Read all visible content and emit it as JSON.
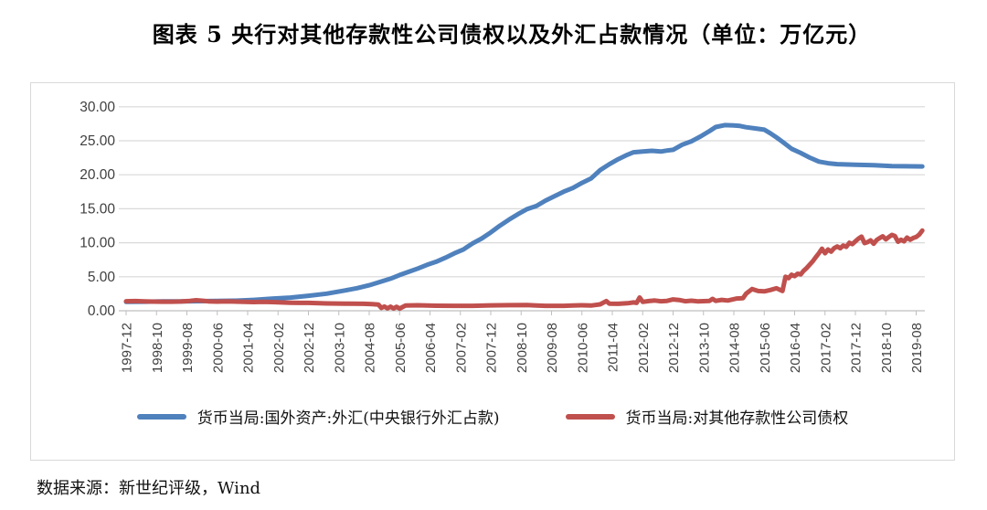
{
  "title": "图表 5  央行对其他存款性公司债权以及外汇占款情况（单位：万亿元）",
  "source": "数据来源：新世纪评级，Wind",
  "colors": {
    "series_forex": "#4F81BD",
    "series_claims": "#C0504D",
    "gridline": "#D9D9D9",
    "axis_line": "#BFBFBF",
    "tick_text": "#404040",
    "frame_border": "#D9D9D9"
  },
  "chart_data": {
    "type": "line",
    "title": "图表 5  央行对其他存款性公司债权以及外汇占款情况（单位：万亿元）",
    "unit": "万亿元",
    "xlabel": "",
    "ylabel": "",
    "ylim": [
      0,
      30
    ],
    "ytick_step": 5,
    "ytick_labels": [
      "30.00",
      "25.00",
      "20.00",
      "15.00",
      "10.00",
      "5.00",
      "0.00"
    ],
    "x_start": "1997-12",
    "x_end": "2019-10",
    "xtick_interval_months": 10,
    "xtick_labels": [
      "1997-12",
      "1998-10",
      "1999-08",
      "2000-06",
      "2001-04",
      "2002-02",
      "2002-12",
      "2003-10",
      "2004-08",
      "2005-06",
      "2006-04",
      "2007-02",
      "2007-12",
      "2008-10",
      "2009-08",
      "2010-06",
      "2011-04",
      "2012-02",
      "2012-12",
      "2013-10",
      "2014-08",
      "2015-06",
      "2016-04",
      "2017-02",
      "2017-12",
      "2018-10",
      "2019-08"
    ],
    "grid": true,
    "legend_position": "bottom",
    "series": [
      {
        "name": "货币当局:国外资产:外汇(中央银行外汇占款)",
        "color": "#4F81BD",
        "points": [
          [
            "1997-12",
            1.3
          ],
          [
            "1998-06",
            1.33
          ],
          [
            "1998-12",
            1.37
          ],
          [
            "1999-06",
            1.39
          ],
          [
            "1999-12",
            1.41
          ],
          [
            "2000-06",
            1.44
          ],
          [
            "2000-12",
            1.48
          ],
          [
            "2001-06",
            1.6
          ],
          [
            "2001-12",
            1.77
          ],
          [
            "2002-06",
            1.93
          ],
          [
            "2002-12",
            2.21
          ],
          [
            "2003-06",
            2.52
          ],
          [
            "2003-12",
            2.98
          ],
          [
            "2004-04",
            3.32
          ],
          [
            "2004-08",
            3.75
          ],
          [
            "2004-12",
            4.3
          ],
          [
            "2005-03",
            4.72
          ],
          [
            "2005-06",
            5.25
          ],
          [
            "2005-09",
            5.72
          ],
          [
            "2005-12",
            6.21
          ],
          [
            "2006-03",
            6.75
          ],
          [
            "2006-06",
            7.2
          ],
          [
            "2006-09",
            7.78
          ],
          [
            "2006-12",
            8.44
          ],
          [
            "2007-03",
            9.02
          ],
          [
            "2007-06",
            9.9
          ],
          [
            "2007-09",
            10.62
          ],
          [
            "2007-12",
            11.52
          ],
          [
            "2008-03",
            12.52
          ],
          [
            "2008-06",
            13.4
          ],
          [
            "2008-09",
            14.22
          ],
          [
            "2008-12",
            14.96
          ],
          [
            "2009-03",
            15.4
          ],
          [
            "2009-06",
            16.2
          ],
          [
            "2009-09",
            16.85
          ],
          [
            "2009-12",
            17.52
          ],
          [
            "2010-03",
            18.05
          ],
          [
            "2010-06",
            18.8
          ],
          [
            "2010-09",
            19.45
          ],
          [
            "2010-12",
            20.68
          ],
          [
            "2011-03",
            21.55
          ],
          [
            "2011-06",
            22.3
          ],
          [
            "2011-09",
            22.95
          ],
          [
            "2011-11",
            23.3
          ],
          [
            "2012-02",
            23.42
          ],
          [
            "2012-05",
            23.52
          ],
          [
            "2012-08",
            23.42
          ],
          [
            "2012-10",
            23.56
          ],
          [
            "2012-12",
            23.67
          ],
          [
            "2013-03",
            24.42
          ],
          [
            "2013-06",
            24.92
          ],
          [
            "2013-09",
            25.62
          ],
          [
            "2013-12",
            26.43
          ],
          [
            "2014-02",
            27.02
          ],
          [
            "2014-05",
            27.3
          ],
          [
            "2014-08",
            27.26
          ],
          [
            "2014-10",
            27.18
          ],
          [
            "2014-12",
            26.99
          ],
          [
            "2015-03",
            26.82
          ],
          [
            "2015-06",
            26.62
          ],
          [
            "2015-08",
            26.1
          ],
          [
            "2015-10",
            25.5
          ],
          [
            "2015-12",
            24.85
          ],
          [
            "2016-03",
            23.82
          ],
          [
            "2016-06",
            23.2
          ],
          [
            "2016-09",
            22.52
          ],
          [
            "2016-12",
            21.94
          ],
          [
            "2017-03",
            21.7
          ],
          [
            "2017-06",
            21.56
          ],
          [
            "2017-12",
            21.48
          ],
          [
            "2018-06",
            21.4
          ],
          [
            "2018-12",
            21.26
          ],
          [
            "2019-04",
            21.25
          ],
          [
            "2019-10",
            21.22
          ]
        ]
      },
      {
        "name": "货币当局:对其他存款性公司债权",
        "color": "#C0504D",
        "points": [
          [
            "1997-12",
            1.4
          ],
          [
            "1998-03",
            1.42
          ],
          [
            "1998-06",
            1.38
          ],
          [
            "1998-09",
            1.35
          ],
          [
            "1998-12",
            1.33
          ],
          [
            "1999-03",
            1.33
          ],
          [
            "1999-06",
            1.36
          ],
          [
            "1999-09",
            1.45
          ],
          [
            "1999-11",
            1.54
          ],
          [
            "2000-01",
            1.48
          ],
          [
            "2000-03",
            1.38
          ],
          [
            "2000-06",
            1.35
          ],
          [
            "2000-09",
            1.38
          ],
          [
            "2000-12",
            1.35
          ],
          [
            "2001-03",
            1.3
          ],
          [
            "2001-06",
            1.28
          ],
          [
            "2001-09",
            1.3
          ],
          [
            "2001-12",
            1.28
          ],
          [
            "2002-03",
            1.22
          ],
          [
            "2002-06",
            1.18
          ],
          [
            "2002-09",
            1.16
          ],
          [
            "2002-12",
            1.15
          ],
          [
            "2003-06",
            1.08
          ],
          [
            "2003-12",
            1.05
          ],
          [
            "2004-06",
            1.02
          ],
          [
            "2004-09",
            0.98
          ],
          [
            "2004-11",
            0.92
          ],
          [
            "2004-12",
            0.42
          ],
          [
            "2005-01",
            0.62
          ],
          [
            "2005-02",
            0.35
          ],
          [
            "2005-03",
            0.6
          ],
          [
            "2005-04",
            0.33
          ],
          [
            "2005-05",
            0.58
          ],
          [
            "2005-06",
            0.32
          ],
          [
            "2005-07",
            0.55
          ],
          [
            "2005-08",
            0.78
          ],
          [
            "2005-12",
            0.8
          ],
          [
            "2006-06",
            0.74
          ],
          [
            "2006-12",
            0.73
          ],
          [
            "2007-06",
            0.72
          ],
          [
            "2007-12",
            0.79
          ],
          [
            "2008-06",
            0.82
          ],
          [
            "2008-12",
            0.84
          ],
          [
            "2009-03",
            0.76
          ],
          [
            "2009-06",
            0.72
          ],
          [
            "2009-12",
            0.72
          ],
          [
            "2010-03",
            0.78
          ],
          [
            "2010-06",
            0.8
          ],
          [
            "2010-09",
            0.76
          ],
          [
            "2010-12",
            0.94
          ],
          [
            "2011-02",
            1.42
          ],
          [
            "2011-03",
            1.05
          ],
          [
            "2011-06",
            1.02
          ],
          [
            "2011-09",
            1.1
          ],
          [
            "2011-11",
            1.22
          ],
          [
            "2011-12",
            1.15
          ],
          [
            "2012-01",
            1.95
          ],
          [
            "2012-02",
            1.3
          ],
          [
            "2012-04",
            1.42
          ],
          [
            "2012-06",
            1.5
          ],
          [
            "2012-08",
            1.4
          ],
          [
            "2012-10",
            1.45
          ],
          [
            "2012-12",
            1.67
          ],
          [
            "2013-02",
            1.58
          ],
          [
            "2013-04",
            1.4
          ],
          [
            "2013-06",
            1.48
          ],
          [
            "2013-08",
            1.38
          ],
          [
            "2013-12",
            1.45
          ],
          [
            "2014-01",
            1.75
          ],
          [
            "2014-02",
            1.45
          ],
          [
            "2014-04",
            1.6
          ],
          [
            "2014-06",
            1.5
          ],
          [
            "2014-09",
            1.8
          ],
          [
            "2014-11",
            1.85
          ],
          [
            "2014-12",
            2.5
          ],
          [
            "2015-02",
            3.2
          ],
          [
            "2015-04",
            2.9
          ],
          [
            "2015-06",
            2.85
          ],
          [
            "2015-08",
            3.05
          ],
          [
            "2015-10",
            3.3
          ],
          [
            "2015-12",
            2.9
          ],
          [
            "2016-01",
            5.0
          ],
          [
            "2016-02",
            4.8
          ],
          [
            "2016-03",
            5.3
          ],
          [
            "2016-04",
            5.1
          ],
          [
            "2016-05",
            5.45
          ],
          [
            "2016-06",
            5.35
          ],
          [
            "2016-07",
            5.9
          ],
          [
            "2016-08",
            6.3
          ],
          [
            "2016-09",
            6.8
          ],
          [
            "2016-10",
            7.3
          ],
          [
            "2016-11",
            7.9
          ],
          [
            "2016-12",
            8.47
          ],
          [
            "2017-01",
            9.13
          ],
          [
            "2017-02",
            8.45
          ],
          [
            "2017-03",
            9.0
          ],
          [
            "2017-04",
            8.7
          ],
          [
            "2017-05",
            9.2
          ],
          [
            "2017-06",
            9.45
          ],
          [
            "2017-07",
            9.2
          ],
          [
            "2017-08",
            9.6
          ],
          [
            "2017-09",
            9.4
          ],
          [
            "2017-10",
            10.0
          ],
          [
            "2017-11",
            9.8
          ],
          [
            "2017-12",
            10.22
          ],
          [
            "2018-01",
            10.6
          ],
          [
            "2018-02",
            10.9
          ],
          [
            "2018-03",
            9.95
          ],
          [
            "2018-04",
            10.1
          ],
          [
            "2018-05",
            10.35
          ],
          [
            "2018-06",
            9.85
          ],
          [
            "2018-07",
            10.4
          ],
          [
            "2018-08",
            10.7
          ],
          [
            "2018-09",
            10.95
          ],
          [
            "2018-10",
            10.5
          ],
          [
            "2018-11",
            10.85
          ],
          [
            "2018-12",
            11.15
          ],
          [
            "2019-01",
            11.0
          ],
          [
            "2019-02",
            10.15
          ],
          [
            "2019-03",
            10.45
          ],
          [
            "2019-04",
            10.2
          ],
          [
            "2019-05",
            10.75
          ],
          [
            "2019-06",
            10.45
          ],
          [
            "2019-07",
            10.7
          ],
          [
            "2019-08",
            10.85
          ],
          [
            "2019-09",
            11.2
          ],
          [
            "2019-10",
            11.8
          ]
        ]
      }
    ]
  }
}
